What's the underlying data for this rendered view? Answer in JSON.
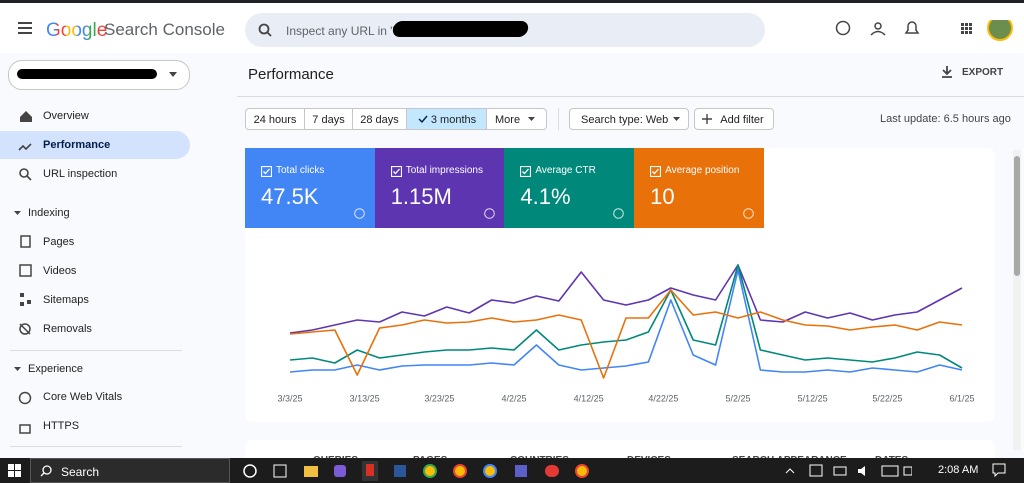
{
  "header": {
    "brand": "Google",
    "product": "Search Console",
    "search_placeholder": "Inspect any URL in \""
  },
  "sidebar": {
    "items": [
      "Overview",
      "Performance",
      "URL inspection"
    ],
    "sections": [
      {
        "title": "Indexing",
        "items": [
          "Pages",
          "Videos",
          "Sitemaps",
          "Removals"
        ]
      },
      {
        "title": "Experience",
        "items": [
          "Core Web Vitals",
          "HTTPS"
        ]
      }
    ]
  },
  "page": {
    "title": "Performance",
    "export": "EXPORT"
  },
  "filters": {
    "ranges": [
      "24 hours",
      "7 days",
      "28 days",
      "3 months",
      "More"
    ],
    "search_type": "Search type: Web",
    "add_filter": "Add filter",
    "last_update": "Last update: 6.5 hours ago"
  },
  "chart_data": {
    "type": "line",
    "x": [
      "3/3/25",
      "3/6/25",
      "3/9/25",
      "3/12/25",
      "3/15/25",
      "3/18/25",
      "3/21/25",
      "3/24/25",
      "3/27/25",
      "3/30/25",
      "4/2/25",
      "4/5/25",
      "4/8/25",
      "4/11/25",
      "4/14/25",
      "4/17/25",
      "4/20/25",
      "4/23/25",
      "4/26/25",
      "4/29/25",
      "5/2/25",
      "5/5/25",
      "5/8/25",
      "5/11/25",
      "5/14/25",
      "5/17/25",
      "5/20/25",
      "5/23/25",
      "5/26/25",
      "5/29/25",
      "6/1/25"
    ],
    "xticks": [
      "3/3/25",
      "3/13/25",
      "3/23/25",
      "4/2/25",
      "4/12/25",
      "4/22/25",
      "5/2/25",
      "5/12/25",
      "5/22/25",
      "6/1/25"
    ],
    "ylim": [
      10,
      150
    ],
    "series": [
      {
        "name": "Total clicks",
        "total": "47.5K",
        "color": "#4285f4",
        "values": [
          28,
          30,
          30,
          35,
          30,
          34,
          35,
          35,
          35,
          37,
          35,
          55,
          35,
          30,
          32,
          34,
          38,
          100,
          45,
          35,
          130,
          30,
          28,
          28,
          30,
          28,
          32,
          30,
          28,
          35,
          30
        ]
      },
      {
        "name": "Total impressions",
        "total": "1.15M",
        "color": "#5e35b1",
        "values": [
          67,
          70,
          75,
          80,
          78,
          88,
          84,
          93,
          87,
          100,
          97,
          104,
          99,
          128,
          100,
          95,
          100,
          112,
          105,
          100,
          135,
          80,
          78,
          88,
          82,
          87,
          80,
          85,
          88,
          100,
          112
        ]
      },
      {
        "name": "Average CTR",
        "total": "4.1%",
        "color": "#00897b",
        "values": [
          40,
          42,
          37,
          50,
          42,
          45,
          48,
          50,
          50,
          52,
          50,
          70,
          50,
          55,
          58,
          60,
          68,
          110,
          60,
          55,
          135,
          50,
          45,
          40,
          42,
          40,
          38,
          42,
          48,
          45,
          32
        ]
      },
      {
        "name": "Average position",
        "total": "10",
        "color": "#e8710a",
        "values": [
          66,
          68,
          70,
          25,
          72,
          75,
          80,
          77,
          78,
          82,
          78,
          80,
          85,
          80,
          22,
          82,
          82,
          110,
          85,
          88,
          82,
          88,
          80,
          75,
          74,
          70,
          73,
          75,
          70,
          78,
          75
        ]
      }
    ]
  },
  "tabs": [
    "QUERIES",
    "PAGES",
    "COUNTRIES",
    "DEVICES",
    "SEARCH APPEARANCE",
    "DATES"
  ],
  "taskbar": {
    "search": "Search",
    "time": "2:08 AM"
  }
}
